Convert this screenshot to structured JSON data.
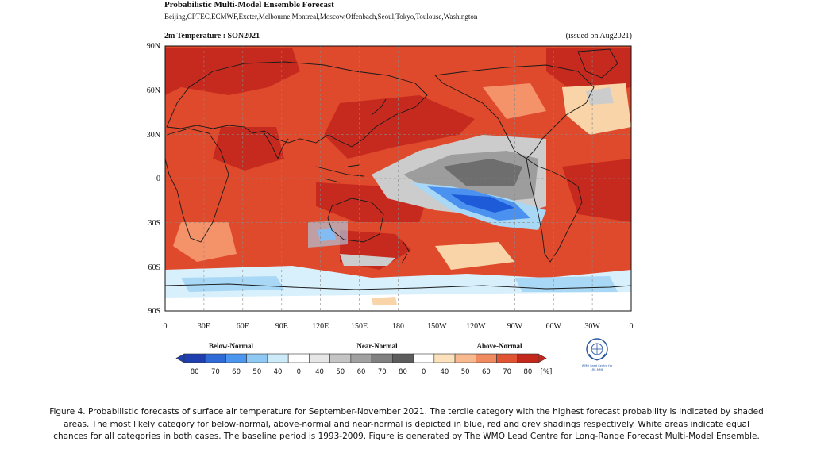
{
  "header": {
    "title": "Probabilistic Multi-Model Ensemble Forecast",
    "centres": "Beijing,CPTEC,ECMWF,Exeter,Melbourne,Montreal,Moscow,Offenbach,Seoul,Tokyo,Toulouse,Washington"
  },
  "map": {
    "variable_label": "2m Temperature : SON2021",
    "issued_label": "(issued on Aug2021)",
    "lat_ticks": [
      "90N",
      "60N",
      "30N",
      "0",
      "30S",
      "60S",
      "90S"
    ],
    "lon_ticks": [
      "0",
      "30E",
      "60E",
      "90E",
      "120E",
      "150E",
      "180",
      "150W",
      "120W",
      "90W",
      "60W",
      "30W",
      "0"
    ],
    "colors": {
      "above_dark": "#c62a1e",
      "above_mid": "#e04a2c",
      "above_light": "#f4926a",
      "above_pale": "#f9d4a8",
      "near_dark": "#6e6e6e",
      "near_mid": "#9d9d9d",
      "near_light": "#cccccc",
      "below_dark": "#1e5bd8",
      "below_mid": "#4b92f0",
      "below_light": "#a8d8f5",
      "below_pale": "#d8f0fb",
      "land_outline": "#1a1a1a"
    }
  },
  "legend": {
    "below_label": "Below-Normal",
    "near_label": "Near-Normal",
    "above_label": "Above-Normal",
    "ticks": [
      "80",
      "70",
      "60",
      "50",
      "40",
      "0",
      "40",
      "50",
      "60",
      "70",
      "80",
      "0",
      "40",
      "50",
      "60",
      "70",
      "80"
    ],
    "unit": "[%]",
    "swatches": [
      "#1f3fb0",
      "#2f6bd6",
      "#4b96ef",
      "#8ec8f3",
      "#cdeaf8",
      "#ffffff",
      "#e6e6e6",
      "#c4c4c4",
      "#a1a1a1",
      "#808080",
      "#5c5c5c",
      "#ffffff",
      "#fbe2bc",
      "#f7b98d",
      "#f08a5f",
      "#e05434",
      "#c4281c"
    ]
  },
  "logo": {
    "lines": [
      "WMO Lead Centre for",
      "LRF-MME"
    ],
    "icon": "wmo-emblem-icon"
  },
  "caption": {
    "text": "Figure 4. Probabilistic forecasts of surface air temperature for September-November 2021.  The tercile category with the highest forecast probability is indicated by shaded areas. The most likely category for below-normal, above-normal and near-normal is depicted in blue, red and grey shadings respectively. White areas indicate equal chances for all categories in both cases.  The baseline period is 1993-2009. Figure is generated by The WMO Lead Centre for Long-Range Forecast Multi-Model Ensemble."
  }
}
